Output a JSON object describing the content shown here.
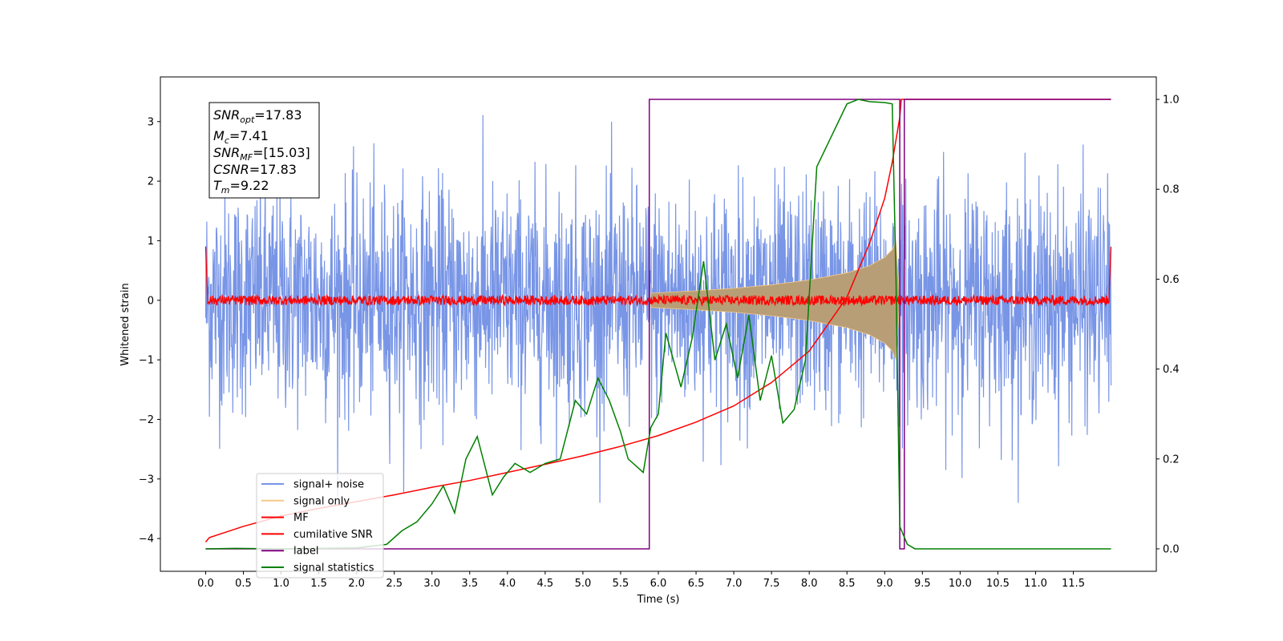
{
  "chart_data": {
    "type": "line",
    "title": "",
    "xlabel": "Time (s)",
    "ylabel": "Whitened strain",
    "xlim": [
      -0.6,
      12.6
    ],
    "ylim": [
      -4.55,
      3.75
    ],
    "y2lim": [
      -0.05,
      1.05
    ],
    "xticks": [
      0.0,
      0.5,
      1.0,
      1.5,
      2.0,
      2.5,
      3.0,
      3.5,
      4.0,
      4.5,
      5.0,
      5.5,
      6.0,
      6.5,
      7.0,
      7.5,
      8.0,
      8.5,
      9.0,
      9.5,
      10.0,
      10.5,
      11.0,
      11.5
    ],
    "xtick_labels": [
      "0.0",
      "0.5",
      "1.0",
      "1.5",
      "2.0",
      "2.5",
      "3.0",
      "3.5",
      "4.0",
      "4.5",
      "5.0",
      "5.5",
      "6.0",
      "6.5",
      "7.0",
      "7.5",
      "8.0",
      "8.5",
      "9.0",
      "9.5",
      "10.0",
      "10.5",
      "11.0",
      "11.5"
    ],
    "yticks": [
      -4,
      -3,
      -2,
      -1,
      0,
      1,
      2,
      3
    ],
    "ytick_labels": [
      "−4",
      "−3",
      "−2",
      "−1",
      "0",
      "1",
      "2",
      "3"
    ],
    "y2ticks": [
      0.0,
      0.2,
      0.4,
      0.6,
      0.8,
      1.0
    ],
    "y2tick_labels": [
      "0.0",
      "0.2",
      "0.4",
      "0.6",
      "0.8",
      "1.0"
    ],
    "legend_placement": "lower-left",
    "grid": false,
    "info_box": {
      "snr_opt_name": "SNR",
      "snr_opt_sub": "opt",
      "snr_opt_value": "=17.83",
      "mc_name": "M",
      "mc_sub": "c",
      "mc_value": "=7.41",
      "snr_mf_name": "SNR",
      "snr_mf_sub": "MF",
      "snr_mf_value": "=[15.03]",
      "csnr_name": "CSNR",
      "csnr_value": "=17.83",
      "tm_name": "T",
      "tm_sub": "m",
      "tm_value": "=9.22"
    },
    "series": [
      {
        "name": "signal+ noise",
        "axis": "left",
        "color": "#7895e6",
        "description_range": [
          -3.4,
          3.4
        ],
        "x_range": [
          0.0,
          12.0
        ]
      },
      {
        "name": "signal only",
        "axis": "left",
        "color": "#f5c98a",
        "envelope_x": [
          5.9,
          6.5,
          7.0,
          7.5,
          8.0,
          8.5,
          8.8,
          9.0,
          9.1,
          9.15,
          9.2
        ],
        "envelope_amp": [
          0.12,
          0.16,
          0.2,
          0.26,
          0.34,
          0.46,
          0.58,
          0.72,
          0.85,
          1.0,
          0.0
        ]
      },
      {
        "name": "MF",
        "axis": "left",
        "color": "#ff0000",
        "level": 0.0,
        "jitter": 0.08
      },
      {
        "name": "cumilative SNR",
        "axis": "right",
        "color": "#ff0000",
        "x": [
          0.0,
          0.05,
          0.5,
          1.0,
          1.5,
          2.0,
          2.5,
          3.0,
          3.5,
          4.0,
          4.5,
          5.0,
          5.5,
          6.0,
          6.5,
          7.0,
          7.5,
          8.0,
          8.5,
          8.8,
          9.0,
          9.1,
          9.2,
          9.22,
          12.0
        ],
        "y": [
          0.015,
          0.025,
          0.05,
          0.073,
          0.09,
          0.105,
          0.12,
          0.137,
          0.152,
          0.17,
          0.188,
          0.207,
          0.228,
          0.252,
          0.282,
          0.318,
          0.37,
          0.44,
          0.56,
          0.68,
          0.78,
          0.86,
          0.96,
          1.0,
          1.0
        ]
      },
      {
        "name": "label",
        "axis": "right",
        "color": "#800080",
        "x": [
          0.0,
          5.88,
          5.88,
          9.2,
          9.2,
          9.26,
          9.26,
          12.0
        ],
        "y": [
          0.0,
          0.0,
          1.0,
          1.0,
          0.0,
          0.0,
          1.0,
          1.0
        ]
      },
      {
        "name": "signal statistics",
        "axis": "right",
        "color": "#008000",
        "x": [
          0.0,
          0.4,
          1.0,
          2.0,
          2.4,
          2.6,
          2.8,
          3.0,
          3.15,
          3.3,
          3.45,
          3.6,
          3.8,
          3.95,
          4.1,
          4.3,
          4.5,
          4.7,
          4.9,
          5.05,
          5.2,
          5.35,
          5.5,
          5.6,
          5.8,
          5.9,
          6.0,
          6.1,
          6.3,
          6.45,
          6.6,
          6.75,
          6.9,
          7.05,
          7.2,
          7.35,
          7.5,
          7.65,
          7.8,
          7.95,
          8.1,
          8.3,
          8.5,
          8.65,
          8.8,
          9.0,
          9.1,
          9.15,
          9.2,
          9.3,
          9.4,
          12.0
        ],
        "y": [
          0.0,
          0.001,
          0.0,
          0.002,
          0.01,
          0.04,
          0.06,
          0.1,
          0.14,
          0.08,
          0.2,
          0.25,
          0.12,
          0.16,
          0.19,
          0.17,
          0.19,
          0.2,
          0.33,
          0.3,
          0.38,
          0.33,
          0.26,
          0.2,
          0.17,
          0.27,
          0.3,
          0.48,
          0.36,
          0.47,
          0.64,
          0.42,
          0.5,
          0.38,
          0.52,
          0.33,
          0.43,
          0.28,
          0.31,
          0.42,
          0.85,
          0.92,
          0.99,
          1.0,
          0.995,
          0.993,
          0.99,
          0.6,
          0.05,
          0.01,
          0.0,
          0.0
        ]
      }
    ]
  }
}
